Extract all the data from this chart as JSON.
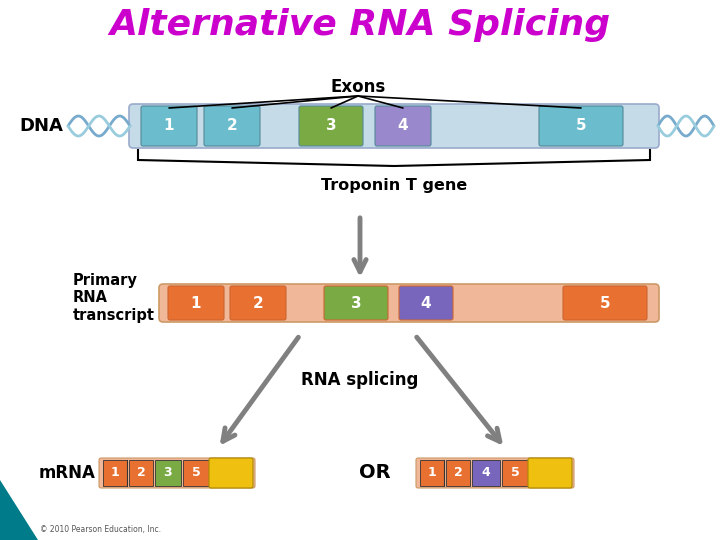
{
  "title": "Alternative RNA Splicing",
  "title_color": "#cc00cc",
  "title_fontsize": 26,
  "background_color": "#ffffff",
  "dna_label": "DNA",
  "primary_label": "Primary\nRNA\ntranscript",
  "mrna_label": "mRNA",
  "dna_bar_color": "#c5dce8",
  "exon_colors_dna": [
    "#6bbccc",
    "#6bbccc",
    "#7aaa44",
    "#9988cc",
    "#6bbccc"
  ],
  "exon_labels_dna": [
    "1",
    "2",
    "3",
    "4",
    "5"
  ],
  "primary_bar_color": "#f0b898",
  "exon_colors_primary": [
    "#e87030",
    "#e87030",
    "#7aaa44",
    "#7766bb",
    "#e87030"
  ],
  "exon_labels_primary": [
    "1",
    "2",
    "3",
    "4",
    "5"
  ],
  "mrna1_exon_colors": [
    "#e87030",
    "#e87030",
    "#7aaa44",
    "#f0c000"
  ],
  "mrna1_exon_labels": [
    "1",
    "2",
    "3",
    "5"
  ],
  "mrna2_exon_colors": [
    "#e87030",
    "#e87030",
    "#7766bb",
    "#f0c000"
  ],
  "mrna2_exon_labels": [
    "1",
    "2",
    "4",
    "5"
  ],
  "arrow_color": "#808080",
  "line_color": "#000000",
  "exons_label": "Exons",
  "troponin_label": "Troponin T gene",
  "rna_splicing_label": "RNA splicing",
  "or_label": "OR",
  "teal_color": "#007b8a",
  "copyright": "© 2010 Pearson Education, Inc."
}
